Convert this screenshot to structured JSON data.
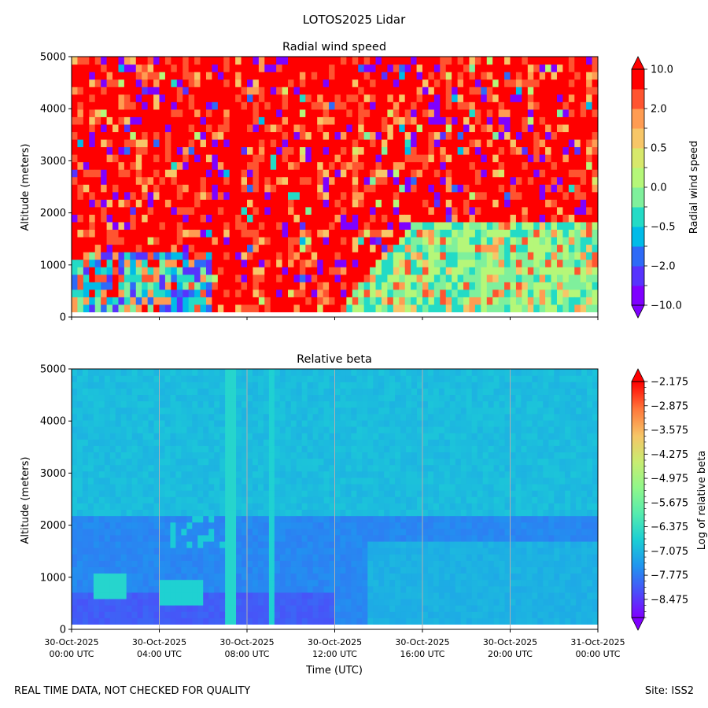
{
  "figure": {
    "suptitle": "LOTOS2025 Lidar",
    "footer_left": "REAL TIME DATA, NOT CHECKED FOR QUALITY",
    "footer_right": "Site: ISS2",
    "xlabel": "Time (UTC)",
    "x_ticks": [
      {
        "date": "30-Oct-2025",
        "time": "00:00 UTC"
      },
      {
        "date": "30-Oct-2025",
        "time": "04:00 UTC"
      },
      {
        "date": "30-Oct-2025",
        "time": "08:00 UTC"
      },
      {
        "date": "30-Oct-2025",
        "time": "12:00 UTC"
      },
      {
        "date": "30-Oct-2025",
        "time": "16:00 UTC"
      },
      {
        "date": "30-Oct-2025",
        "time": "20:00 UTC"
      },
      {
        "date": "31-Oct-2025",
        "time": "00:00 UTC"
      }
    ]
  },
  "chart_data": [
    {
      "type": "heatmap",
      "title": "Radial wind speed",
      "xlabel": "",
      "ylabel": "Altitude (meters)",
      "xlim_hours": [
        0,
        24
      ],
      "ylim": [
        0,
        5000
      ],
      "yticks": [
        0,
        1000,
        2000,
        3000,
        4000,
        5000
      ],
      "grid": false,
      "colorbar": {
        "label": "Radial wind speed",
        "levels": [
          -10.0,
          -5.0,
          -2.0,
          -1.0,
          -0.5,
          -0.2,
          0.0,
          0.2,
          0.5,
          1.0,
          2.0,
          5.0,
          10.0
        ],
        "tick_labels": [
          "10.0",
          "2.0",
          "0.5",
          "0.0",
          "−0.5",
          "−2.0",
          "−10.0"
        ],
        "colors": [
          "#7f00ff",
          "#5733fd",
          "#2e6af7",
          "#00bbe8",
          "#23dbc6",
          "#7ff09c",
          "#b5f779",
          "#d7e86b",
          "#f7c668",
          "#ff9c52",
          "#ff5430",
          "#ff0000"
        ],
        "extend": "both"
      },
      "features": [
        {
          "name": "near-ground mixed velocities (0-1500 m, 00-04 UTC)",
          "value_range": [
            -2.0,
            0.5
          ]
        },
        {
          "name": "strong positive column (~07:15-07:45 UTC)",
          "value": 10.0
        },
        {
          "name": "afternoon boundary layer (~12-24 UTC, up to ~1700 m)",
          "value_range": [
            -0.5,
            0.5
          ]
        },
        {
          "name": "upper air noisy field",
          "value_range": [
            -10.0,
            10.0
          ]
        }
      ]
    },
    {
      "type": "heatmap",
      "title": "Relative beta",
      "xlabel": "Time (UTC)",
      "ylabel": "Altitude (meters)",
      "xlim_hours": [
        0,
        24
      ],
      "ylim": [
        0,
        5000
      ],
      "yticks": [
        0,
        1000,
        2000,
        3000,
        4000,
        5000
      ],
      "grid": true,
      "colorbar": {
        "label": "Log of relative beta",
        "vmin": -9.0,
        "vmax": -2.175,
        "tick_labels": [
          "−2.175",
          "−2.875",
          "−3.575",
          "−4.275",
          "−4.975",
          "−5.675",
          "−6.375",
          "−7.075",
          "−7.775",
          "−8.475"
        ],
        "tick_values": [
          -2.175,
          -2.875,
          -3.575,
          -4.275,
          -4.975,
          -5.675,
          -6.375,
          -7.075,
          -7.775,
          -8.475
        ],
        "extend": "both"
      },
      "features": [
        {
          "name": "boundary layer top",
          "altitude_m": 2200,
          "value": -7.6
        },
        {
          "name": "cloud/aerosol column",
          "start_hour": 7.1,
          "end_hour": 7.5,
          "value": -6.6
        },
        {
          "name": "thin column",
          "start_hour": 9.1,
          "end_hour": 9.2,
          "value": -6.6
        },
        {
          "name": "afternoon mixed layer",
          "start_hour": 14,
          "end_hour": 24,
          "altitude_m": [
            0,
            1700
          ],
          "value": -7.1
        },
        {
          "name": "free troposphere",
          "altitude_m": [
            2200,
            5000
          ],
          "value": -7.0
        }
      ]
    }
  ]
}
